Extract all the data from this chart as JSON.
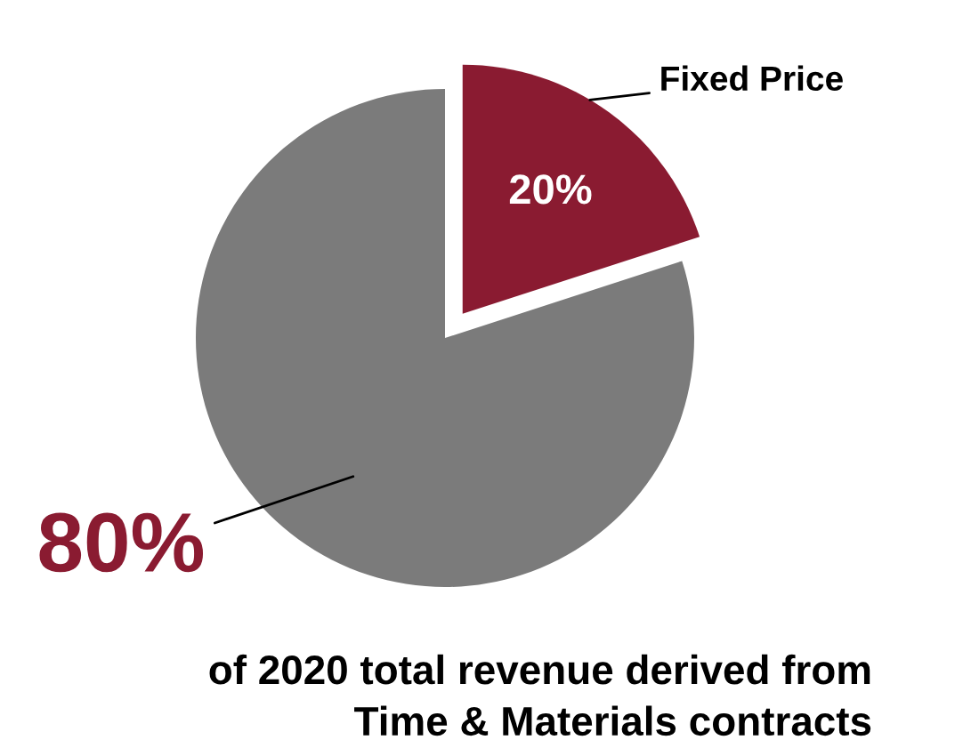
{
  "chart_data": {
    "type": "pie",
    "categories": [
      "Fixed Price",
      null
    ],
    "values": [
      20,
      80
    ],
    "colors": [
      "#8a1b31",
      "#7b7b7b"
    ],
    "value_labels": [
      "20%",
      "80%"
    ],
    "annotations": [
      "of 2020 total revenue derived from\nTime & Materials contracts"
    ]
  }
}
